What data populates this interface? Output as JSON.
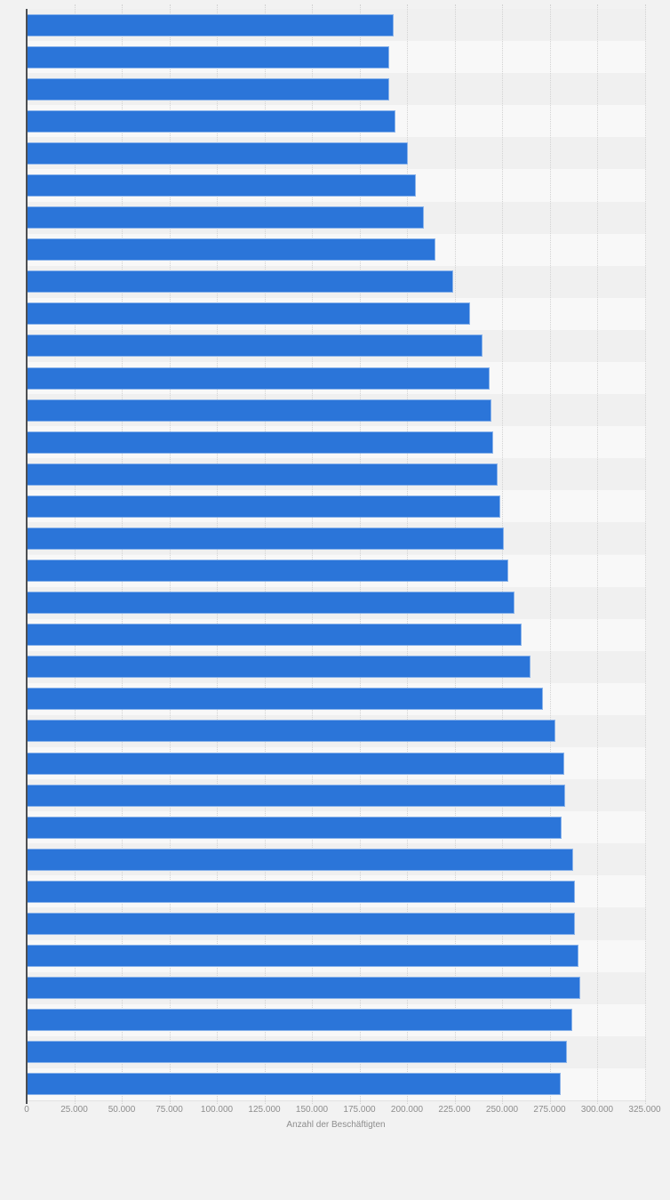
{
  "chart_data": {
    "type": "bar",
    "orientation": "horizontal",
    "title": "",
    "xlabel": "Anzahl der Beschäftigten",
    "ylabel": "",
    "xlim": [
      0,
      325000
    ],
    "x_tick_values": [
      0,
      25000,
      50000,
      75000,
      100000,
      125000,
      150000,
      175000,
      200000,
      225000,
      250000,
      275000,
      300000,
      325000
    ],
    "x_tick_labels": [
      "0",
      "25.000",
      "50.000",
      "75.000",
      "100.000",
      "125.000",
      "150.000",
      "175.000",
      "200.000",
      "225.000",
      "250.000",
      "275.000",
      "300.000",
      "325.000"
    ],
    "grid": "vertical-dotted",
    "legend": "none",
    "category_labels_visible": false,
    "values": [
      193000,
      190500,
      190500,
      194000,
      200500,
      204500,
      209000,
      215000,
      224500,
      233000,
      239500,
      243500,
      244500,
      245500,
      247500,
      249000,
      251000,
      253500,
      256500,
      260500,
      265000,
      271500,
      278000,
      282500,
      283000,
      281500,
      287500,
      288500,
      288500,
      290000,
      291000,
      287000,
      284000,
      281000
    ]
  },
  "colors": {
    "bar": "#2b75d9",
    "background": "#f2f2f2",
    "band_dark": "#f0f0f0",
    "band_light": "#f8f8f8",
    "gridline": "#d2d2d2",
    "axis_line": "#4d4f52",
    "tick_text": "#8d8d8d"
  },
  "layout_values": {
    "bar_count": 34
  }
}
